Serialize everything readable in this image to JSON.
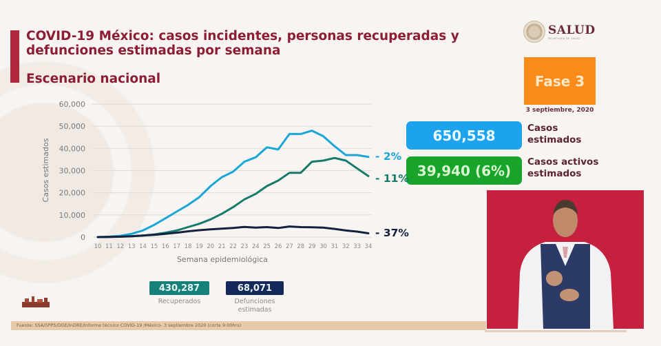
{
  "header": {
    "title": "COVID-19 México: casos incidentes, personas recuperadas y defunciones estimadas por semana",
    "subtitle": "Escenario nacional"
  },
  "brand": {
    "logo_name": "SALUD",
    "logo_subtext": "SECRETARÍA DE SALUD",
    "phase_label": "Fase 3",
    "date": "3 septiembre, 2020",
    "phase_color": "#fb8c1a"
  },
  "stats": {
    "cases_value": "650,558",
    "cases_label_1": "Casos",
    "cases_label_2": "estimados",
    "active_value": "39,940 (6%)",
    "active_label_1": "Casos activos",
    "active_label_2": "estimados",
    "recovered_value": "430,287",
    "recovered_label": "Recuperados",
    "deaths_value": "68,071",
    "deaths_label_1": "Defunciones",
    "deaths_label_2": "estimadas"
  },
  "footer": {
    "source": "Fuente: SSA/SPPS/DGE/InDRE/Informe técnico COVID-19 /México- 3 septiembre 2020 (corte 9:00hrs)"
  },
  "video": {
    "description": "Intérprete de lengua de señas"
  },
  "chart_data": {
    "type": "line",
    "title": "COVID-19 México: casos incidentes, personas recuperadas y defunciones estimadas por semana",
    "xlabel": "Semana epidemiológica",
    "ylabel": "Casos estimados",
    "ylim": [
      0,
      60000
    ],
    "yticks": [
      0,
      10000,
      20000,
      30000,
      40000,
      50000,
      60000
    ],
    "ytick_labels": [
      "0",
      "10,000",
      "20,000",
      "30,000",
      "40,000",
      "50,000",
      "60,000"
    ],
    "x": [
      10,
      11,
      12,
      13,
      14,
      15,
      16,
      17,
      18,
      19,
      20,
      21,
      22,
      23,
      24,
      25,
      26,
      27,
      28,
      29,
      30,
      31,
      32,
      33,
      34
    ],
    "grid": true,
    "series": [
      {
        "name": "Casos estimados",
        "color": "#1aa6d6",
        "end_label": "- 2%",
        "values": [
          0,
          200,
          600,
          1500,
          3000,
          5500,
          8500,
          11500,
          14500,
          18000,
          23000,
          27000,
          29500,
          34000,
          36000,
          40500,
          39500,
          46500,
          46500,
          48000,
          45500,
          41000,
          37000,
          37000,
          36200
        ]
      },
      {
        "name": "Recuperados",
        "color": "#167a6c",
        "end_label": "- 11%",
        "values": [
          0,
          100,
          200,
          400,
          700,
          1200,
          2000,
          3000,
          4500,
          6000,
          8000,
          10500,
          13500,
          17000,
          19500,
          23000,
          25500,
          29000,
          29000,
          34000,
          34500,
          35700,
          34500,
          31000,
          27500
        ]
      },
      {
        "name": "Defunciones estimadas",
        "color": "#13203f",
        "end_label": "- 37%",
        "values": [
          0,
          100,
          200,
          400,
          700,
          1000,
          1500,
          2000,
          2600,
          3100,
          3500,
          3800,
          4100,
          4600,
          4300,
          4500,
          4100,
          4800,
          4500,
          4400,
          4300,
          3700,
          3000,
          2500,
          1700
        ]
      }
    ]
  }
}
